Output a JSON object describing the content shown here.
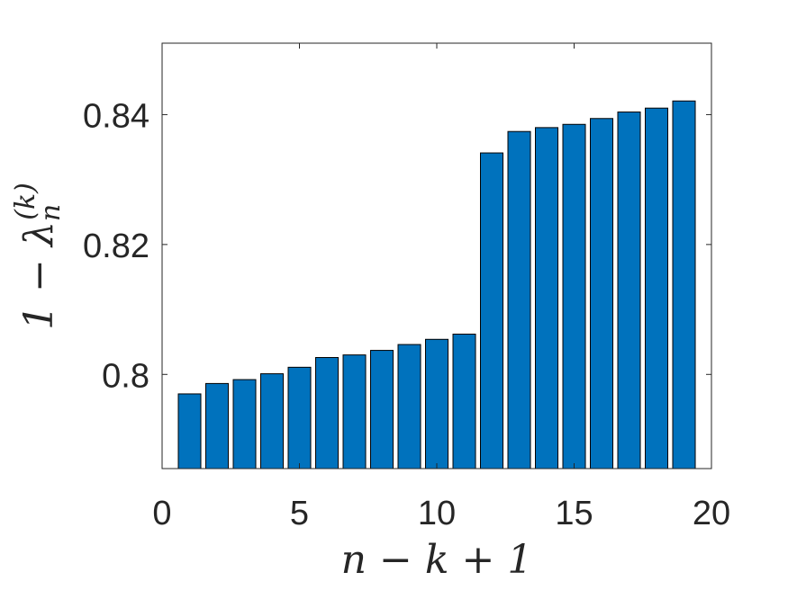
{
  "chart_data": {
    "type": "bar",
    "title": "",
    "xlabel": "n − k + 1",
    "ylabel_parts": {
      "prefix": "1 − λ",
      "subscript": "n",
      "superscript": "(k)"
    },
    "x": [
      1,
      2,
      3,
      4,
      5,
      6,
      7,
      8,
      9,
      10,
      11,
      12,
      13,
      14,
      15,
      16,
      17,
      18,
      19
    ],
    "values": [
      0.797,
      0.7986,
      0.7992,
      0.8001,
      0.8011,
      0.8026,
      0.803,
      0.8037,
      0.8046,
      0.8054,
      0.8062,
      0.8341,
      0.8374,
      0.838,
      0.8385,
      0.8394,
      0.8404,
      0.841,
      0.8421
    ],
    "xlim": [
      0,
      20
    ],
    "ylim": [
      0.7855,
      0.851
    ],
    "xticks": [
      0,
      5,
      10,
      15,
      20
    ],
    "xtick_labels": [
      "0",
      "5",
      "10",
      "15",
      "20"
    ],
    "yticks": [
      0.8,
      0.82,
      0.84
    ],
    "ytick_labels": [
      "0.8",
      "0.82",
      "0.84"
    ],
    "grid": false,
    "colors": {
      "bar_fill": "#0072BD",
      "bar_edge": "#000000",
      "axis": "#262626"
    }
  }
}
